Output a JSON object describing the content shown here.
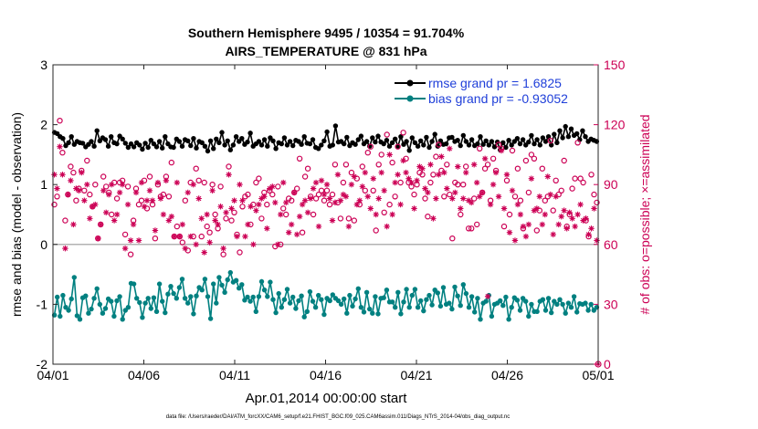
{
  "chart_data": {
    "type": "line",
    "title_line1": "Southern Hemisphere 9495 / 10354 = 91.704%",
    "title_line2": "AIRS_TEMPERATURE @ 831 hPa",
    "xlabel": "Apr.01,2014 00:00:00 start",
    "ylabel_left": "rmse and bias (model - observation)",
    "ylabel_right": "# of obs: o=possible; ×=assimilated",
    "footer": "data file: /Users/raeder/DAI/ATM_forcXX/CAM6_setup/f.e21.FHIST_BGC.f09_025.CAM6assim.011/Diags_NTrS_2014-04/obs_diag_output.nc",
    "x_range": [
      0,
      30
    ],
    "x_ticks": [
      0,
      5,
      10,
      15,
      20,
      25,
      30
    ],
    "x_tick_labels": [
      "04/01",
      "04/06",
      "04/11",
      "04/16",
      "04/21",
      "04/26",
      "05/01"
    ],
    "ylim_left": [
      -2,
      3
    ],
    "y_ticks_left": [
      -2,
      -1,
      0,
      1,
      2,
      3
    ],
    "y_tick_labels_left": [
      "-2",
      "-1",
      "0",
      "1",
      "2",
      "3"
    ],
    "ylim_right": [
      0,
      150
    ],
    "y_ticks_right": [
      0,
      30,
      60,
      90,
      120,
      150
    ],
    "y_tick_labels_right": [
      "0",
      "30",
      "60",
      "90",
      "120",
      "150"
    ],
    "zero_line": 0,
    "colors": {
      "rmse": "#000000",
      "bias": "#008080",
      "obs": "#cc0055",
      "axis_right": "#cc0055",
      "legend_text": "#1f3fd9",
      "zero_line": "#b3b3b3"
    },
    "series": [
      {
        "name": "rmse grand pr = 1.6825",
        "axis": "left",
        "values": [
          1.87,
          1.85,
          1.8,
          1.77,
          1.65,
          1.7,
          1.8,
          1.67,
          1.72,
          1.7,
          1.69,
          1.63,
          1.67,
          1.72,
          1.64,
          1.9,
          1.73,
          1.78,
          1.75,
          1.64,
          1.8,
          1.7,
          1.68,
          1.81,
          1.76,
          1.69,
          1.62,
          1.68,
          1.63,
          1.7,
          1.66,
          1.59,
          1.69,
          1.62,
          1.74,
          1.68,
          1.63,
          1.72,
          1.61,
          1.8,
          1.68,
          1.63,
          1.62,
          1.76,
          1.72,
          1.64,
          1.75,
          1.73,
          1.65,
          1.77,
          1.61,
          1.72,
          1.7,
          1.64,
          1.56,
          1.73,
          1.6,
          1.76,
          1.7,
          1.87,
          1.66,
          1.73,
          1.58,
          1.66,
          1.8,
          1.72,
          1.77,
          1.67,
          1.71,
          1.86,
          1.64,
          1.68,
          1.72,
          1.66,
          1.75,
          1.64,
          1.78,
          1.73,
          1.6,
          1.7,
          1.68,
          1.78,
          1.66,
          1.72,
          1.65,
          1.74,
          1.72,
          1.67,
          1.8,
          1.69,
          1.68,
          1.75,
          1.62,
          1.6,
          1.66,
          1.73,
          1.88,
          1.64,
          1.66,
          1.98,
          1.71,
          1.72,
          1.68,
          1.79,
          1.65,
          1.7,
          1.67,
          1.75,
          1.81,
          1.68,
          1.72,
          1.64,
          1.78,
          1.71,
          1.81,
          1.71,
          1.68,
          1.74,
          1.64,
          1.7,
          1.76,
          1.64,
          1.8,
          1.67,
          1.72,
          1.57,
          1.78,
          1.7,
          1.64,
          1.73,
          1.66,
          1.79,
          1.62,
          1.72,
          1.84,
          1.64,
          1.73,
          1.67,
          1.68,
          1.78,
          1.79,
          1.72,
          1.74,
          1.65,
          1.82,
          1.72,
          1.66,
          1.75,
          1.65,
          1.68,
          1.8,
          1.67,
          1.73,
          1.66,
          1.72,
          1.63,
          1.71,
          1.58,
          1.7,
          1.62,
          1.74,
          1.66,
          1.72,
          1.77,
          1.68,
          1.75,
          1.66,
          1.71,
          1.82,
          1.68,
          1.75,
          1.66,
          1.78,
          1.72,
          1.8,
          1.66,
          1.84,
          1.7,
          1.9,
          1.78,
          1.97,
          1.8,
          1.93,
          1.82,
          1.85,
          1.75,
          1.9,
          1.8,
          1.72,
          1.76,
          1.74,
          1.72
        ]
      },
      {
        "name": "bias grand pr = -0.93052",
        "axis": "left",
        "values": [
          -1.18,
          -0.88,
          -1.2,
          -0.85,
          -1.05,
          -1.1,
          -0.91,
          -0.55,
          -1.19,
          -1.25,
          -0.89,
          -0.86,
          -1.15,
          -1.08,
          -0.9,
          -0.74,
          -1.0,
          -1.15,
          -1.07,
          -0.91,
          -0.95,
          -1.2,
          -0.94,
          -0.87,
          -1.25,
          -1.1,
          -1.05,
          -0.65,
          -0.66,
          -0.9,
          -0.97,
          -1.22,
          -0.98,
          -0.9,
          -1.07,
          -0.89,
          -1.12,
          -0.66,
          -0.95,
          -1.14,
          -0.83,
          -0.7,
          -0.82,
          -0.9,
          -0.72,
          -0.58,
          -0.9,
          -0.98,
          -0.87,
          -1.16,
          -0.86,
          -0.72,
          -0.76,
          -0.58,
          -0.87,
          -1.24,
          -0.66,
          -0.98,
          -0.55,
          -0.68,
          -0.8,
          -0.59,
          -0.47,
          -0.63,
          -0.6,
          -0.73,
          -0.67,
          -0.93,
          -0.88,
          -0.95,
          -0.88,
          -1.12,
          -0.87,
          -0.62,
          -0.76,
          -0.87,
          -0.63,
          -0.92,
          -1.14,
          -0.82,
          -1.05,
          -0.92,
          -0.75,
          -0.98,
          -0.88,
          -1.07,
          -0.94,
          -0.86,
          -1.21,
          -1.12,
          -0.79,
          -0.95,
          -1.05,
          -0.85,
          -0.92,
          -1.17,
          -0.9,
          -0.94,
          -0.84,
          -0.9,
          -0.94,
          -1.0,
          -0.91,
          -1.15,
          -0.85,
          -1.03,
          -0.91,
          -0.74,
          -1.05,
          -1.13,
          -0.8,
          -1.08,
          -1.15,
          -0.87,
          -1.16,
          -0.9,
          -0.89,
          -0.76,
          -0.96,
          -0.96,
          -1.05,
          -0.8,
          -1.16,
          -0.96,
          -0.75,
          -1.05,
          -0.85,
          -0.75,
          -1.05,
          -0.94,
          -1.11,
          -0.92,
          -0.85,
          -1.01,
          -0.76,
          -0.81,
          -1.03,
          -0.72,
          -1.0,
          -0.98,
          -1.08,
          -0.71,
          -0.86,
          -1.02,
          -0.67,
          -0.82,
          -1.05,
          -0.87,
          -1.13,
          -0.9,
          -1.25,
          -0.98,
          -0.95,
          -0.85,
          -1.2,
          -1.0,
          -0.98,
          -0.94,
          -1.02,
          -0.88,
          -1.25,
          -1.05,
          -0.89,
          -0.93,
          -1.1,
          -0.9,
          -0.95,
          -1.2,
          -1.0,
          -1.12,
          -1.12,
          -0.95,
          -0.92,
          -1.1,
          -0.9,
          -1.14,
          -0.95,
          -1.0,
          -0.92,
          -1.0,
          -1.15,
          -0.98,
          -1.05,
          -0.87,
          -1.13,
          -0.99,
          -1.0,
          -0.98,
          -1.1,
          -1.0,
          -1.1,
          -1.05
        ]
      }
    ],
    "possible_obs": [
      80,
      84,
      122,
      106,
      72,
      85,
      99,
      96,
      82,
      88,
      97,
      87,
      102,
      85,
      79,
      90,
      63,
      70,
      94,
      89,
      86,
      75,
      91,
      83,
      91,
      92,
      65,
      89,
      55,
      72,
      88,
      80,
      82,
      92,
      78,
      94,
      80,
      63,
      90,
      84,
      85,
      94,
      84,
      101,
      64,
      69,
      64,
      61,
      82,
      57,
      91,
      64,
      98,
      92,
      64,
      91,
      69,
      66,
      90,
      75,
      68,
      89,
      55,
      73,
      99,
      72,
      76,
      65,
      56,
      79,
      84,
      85,
      70,
      80,
      91,
      93,
      73,
      86,
      80,
      87,
      85,
      59,
      89,
      60,
      78,
      75,
      83,
      82,
      86,
      88,
      103,
      66,
      94,
      98,
      84,
      75,
      83,
      85,
      87,
      82,
      87,
      80,
      85,
      100,
      81,
      73,
      91,
      100,
      73,
      96,
      72,
      93,
      80,
      99,
      87,
      106,
      109,
      87,
      67,
      100,
      105,
      76,
      115,
      80,
      101,
      84,
      109,
      91,
      116,
      103,
      91,
      89,
      85,
      90,
      96,
      95,
      83,
      74,
      91,
      95,
      104,
      110,
      97,
      84,
      100,
      85,
      63,
      91,
      90,
      75,
      90,
      99,
      68,
      68,
      83,
      70,
      108,
      86,
      98,
      100,
      82,
      103,
      97,
      110,
      108,
      69,
      92,
      75,
      107,
      84,
      98,
      82,
      68,
      102,
      86,
      105,
      103,
      67,
      77,
      98,
      82,
      84,
      112,
      77,
      92,
      85,
      87,
      102,
      69,
      75,
      88,
      93,
      111,
      93,
      91,
      72,
      64,
      95,
      85,
      81
    ],
    "assimilated_obs": [
      95,
      88,
      109,
      95,
      58,
      85,
      92,
      70,
      88,
      87,
      96,
      82,
      90,
      73,
      79,
      80,
      63,
      70,
      87,
      76,
      85,
      90,
      72,
      75,
      86,
      90,
      58,
      80,
      62,
      70,
      86,
      62,
      91,
      79,
      82,
      87,
      82,
      67,
      91,
      83,
      75,
      92,
      72,
      74,
      64,
      91,
      64,
      70,
      58,
      86,
      64,
      90,
      60,
      83,
      73,
      56,
      75,
      61,
      87,
      72,
      70,
      79,
      58,
      76,
      95,
      78,
      82,
      64,
      90,
      82,
      64,
      70,
      79,
      60,
      77,
      80,
      83,
      84,
      68,
      88,
      89,
      81,
      60,
      75,
      91,
      81,
      66,
      70,
      86,
      65,
      74,
      80,
      82,
      76,
      83,
      88,
      91,
      69,
      92,
      85,
      90,
      83,
      72,
      81,
      95,
      82,
      85,
      84,
      69,
      90,
      94,
      80,
      82,
      89,
      96,
      84,
      78,
      93,
      75,
      83,
      96,
      87,
      69,
      105,
      75,
      91,
      95,
      80,
      102,
      96,
      93,
      91,
      78,
      92,
      99,
      98,
      88,
      86,
      100,
      73,
      83,
      95,
      104,
      96,
      88,
      108,
      83,
      86,
      99,
      78,
      83,
      96,
      82,
      81,
      100,
      91,
      84,
      86,
      103,
      34,
      80,
      90,
      96,
      84,
      107,
      78,
      95,
      66,
      87,
      62,
      80,
      75,
      69,
      64,
      70,
      93,
      77,
      78,
      84,
      70,
      75,
      94,
      85,
      65,
      84,
      70,
      74,
      77,
      68,
      76,
      73,
      69,
      75,
      80,
      72,
      73,
      65,
      68,
      78,
      62
    ]
  }
}
